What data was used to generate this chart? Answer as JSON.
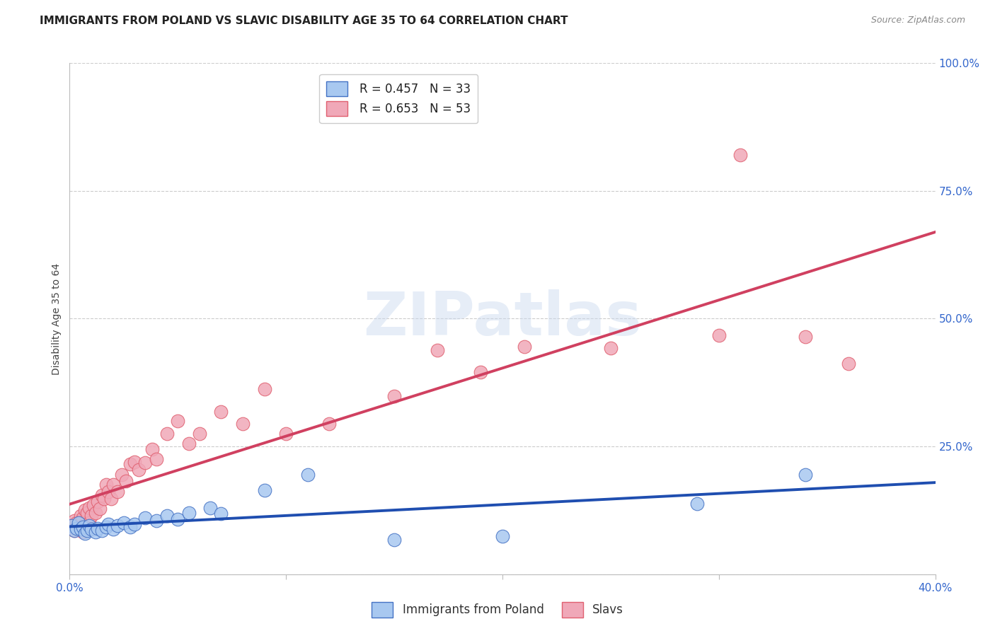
{
  "title": "IMMIGRANTS FROM POLAND VS SLAVIC DISABILITY AGE 35 TO 64 CORRELATION CHART",
  "source": "Source: ZipAtlas.com",
  "ylabel": "Disability Age 35 to 64",
  "xlim": [
    0.0,
    0.4
  ],
  "ylim": [
    0.0,
    1.0
  ],
  "xticks": [
    0.0,
    0.1,
    0.2,
    0.3,
    0.4
  ],
  "xtick_labels": [
    "0.0%",
    "",
    "",
    "",
    "40.0%"
  ],
  "yticks": [
    0.0,
    0.25,
    0.5,
    0.75,
    1.0
  ],
  "ytick_labels": [
    "",
    "25.0%",
    "50.0%",
    "75.0%",
    "100.0%"
  ],
  "watermark_text": "ZIPatlas",
  "poland_color": "#a8c8f0",
  "slavs_color": "#f0a8b8",
  "poland_edge_color": "#4472c4",
  "slavs_edge_color": "#e06070",
  "poland_line_color": "#1f4eb0",
  "slavs_line_color": "#d04060",
  "poland_R": 0.457,
  "poland_N": 33,
  "slavs_R": 0.653,
  "slavs_N": 53,
  "legend_label_poland": "Immigrants from Poland",
  "legend_label_slavs": "Slavs",
  "title_fontsize": 11,
  "axis_label_fontsize": 10,
  "tick_fontsize": 11,
  "legend_fontsize": 12,
  "poland_x": [
    0.001,
    0.002,
    0.003,
    0.004,
    0.005,
    0.006,
    0.007,
    0.008,
    0.009,
    0.01,
    0.012,
    0.013,
    0.015,
    0.017,
    0.018,
    0.02,
    0.022,
    0.025,
    0.028,
    0.03,
    0.035,
    0.04,
    0.045,
    0.05,
    0.055,
    0.065,
    0.07,
    0.09,
    0.11,
    0.15,
    0.2,
    0.29,
    0.34
  ],
  "poland_y": [
    0.095,
    0.085,
    0.09,
    0.1,
    0.088,
    0.092,
    0.08,
    0.085,
    0.095,
    0.088,
    0.082,
    0.09,
    0.085,
    0.092,
    0.098,
    0.088,
    0.095,
    0.1,
    0.092,
    0.098,
    0.11,
    0.105,
    0.115,
    0.108,
    0.12,
    0.13,
    0.118,
    0.165,
    0.195,
    0.068,
    0.075,
    0.138,
    0.195
  ],
  "slavs_x": [
    0.001,
    0.002,
    0.002,
    0.003,
    0.004,
    0.005,
    0.005,
    0.006,
    0.006,
    0.007,
    0.007,
    0.008,
    0.008,
    0.009,
    0.009,
    0.01,
    0.011,
    0.012,
    0.013,
    0.014,
    0.015,
    0.016,
    0.017,
    0.018,
    0.019,
    0.02,
    0.022,
    0.024,
    0.026,
    0.028,
    0.03,
    0.032,
    0.035,
    0.038,
    0.04,
    0.045,
    0.05,
    0.055,
    0.06,
    0.07,
    0.08,
    0.09,
    0.1,
    0.12,
    0.15,
    0.17,
    0.19,
    0.21,
    0.25,
    0.3,
    0.31,
    0.34,
    0.36
  ],
  "slavs_y": [
    0.095,
    0.085,
    0.105,
    0.1,
    0.088,
    0.092,
    0.115,
    0.082,
    0.11,
    0.098,
    0.125,
    0.088,
    0.12,
    0.1,
    0.13,
    0.115,
    0.135,
    0.12,
    0.142,
    0.128,
    0.155,
    0.148,
    0.175,
    0.162,
    0.148,
    0.175,
    0.162,
    0.195,
    0.182,
    0.215,
    0.22,
    0.205,
    0.218,
    0.245,
    0.225,
    0.275,
    0.3,
    0.255,
    0.275,
    0.318,
    0.295,
    0.362,
    0.275,
    0.295,
    0.348,
    0.438,
    0.395,
    0.445,
    0.442,
    0.468,
    0.82,
    0.465,
    0.412
  ]
}
